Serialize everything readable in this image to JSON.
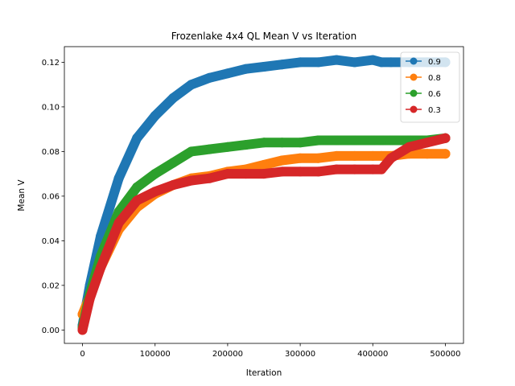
{
  "chart_data": {
    "type": "line",
    "title": "Frozenlake 4x4 QL Mean V vs Iteration",
    "xlabel": "Iteration",
    "ylabel": "Mean V",
    "xlim": [
      -25000,
      525000
    ],
    "ylim": [
      -0.006,
      0.127
    ],
    "xticks": [
      0,
      100000,
      200000,
      300000,
      400000,
      500000
    ],
    "xtick_labels": [
      "0",
      "100000",
      "200000",
      "300000",
      "400000",
      "500000"
    ],
    "yticks": [
      0.0,
      0.02,
      0.04,
      0.06,
      0.08,
      0.1,
      0.12
    ],
    "ytick_labels": [
      "0.00",
      "0.02",
      "0.04",
      "0.06",
      "0.08",
      "0.10",
      "0.12"
    ],
    "grid": false,
    "legend_position": "top-right",
    "x": [
      0,
      10000,
      25000,
      50000,
      75000,
      100000,
      125000,
      150000,
      175000,
      200000,
      225000,
      250000,
      275000,
      300000,
      325000,
      350000,
      375000,
      400000,
      412000,
      425000,
      450000,
      475000,
      500000
    ],
    "series": [
      {
        "name": "0.9",
        "color": "#1f77b4",
        "values": [
          0.002,
          0.02,
          0.042,
          0.068,
          0.086,
          0.096,
          0.104,
          0.11,
          0.113,
          0.115,
          0.117,
          0.118,
          0.119,
          0.12,
          0.12,
          0.121,
          0.12,
          0.121,
          0.12,
          0.12,
          0.12,
          0.12,
          0.12
        ]
      },
      {
        "name": "0.8",
        "color": "#ff7f0e",
        "values": [
          0.007,
          0.015,
          0.028,
          0.045,
          0.055,
          0.061,
          0.065,
          0.068,
          0.069,
          0.071,
          0.072,
          0.074,
          0.076,
          0.077,
          0.077,
          0.078,
          0.078,
          0.078,
          0.078,
          0.078,
          0.079,
          0.079,
          0.079
        ]
      },
      {
        "name": "0.6",
        "color": "#2ca02c",
        "values": [
          0.001,
          0.016,
          0.033,
          0.053,
          0.064,
          0.07,
          0.075,
          0.08,
          0.081,
          0.082,
          0.083,
          0.084,
          0.084,
          0.084,
          0.085,
          0.085,
          0.085,
          0.085,
          0.085,
          0.085,
          0.085,
          0.085,
          0.086
        ]
      },
      {
        "name": "0.3",
        "color": "#d62728",
        "values": [
          0.0,
          0.014,
          0.028,
          0.048,
          0.058,
          0.062,
          0.065,
          0.067,
          0.068,
          0.07,
          0.07,
          0.07,
          0.071,
          0.071,
          0.071,
          0.072,
          0.072,
          0.072,
          0.072,
          0.077,
          0.082,
          0.084,
          0.086
        ]
      }
    ]
  }
}
